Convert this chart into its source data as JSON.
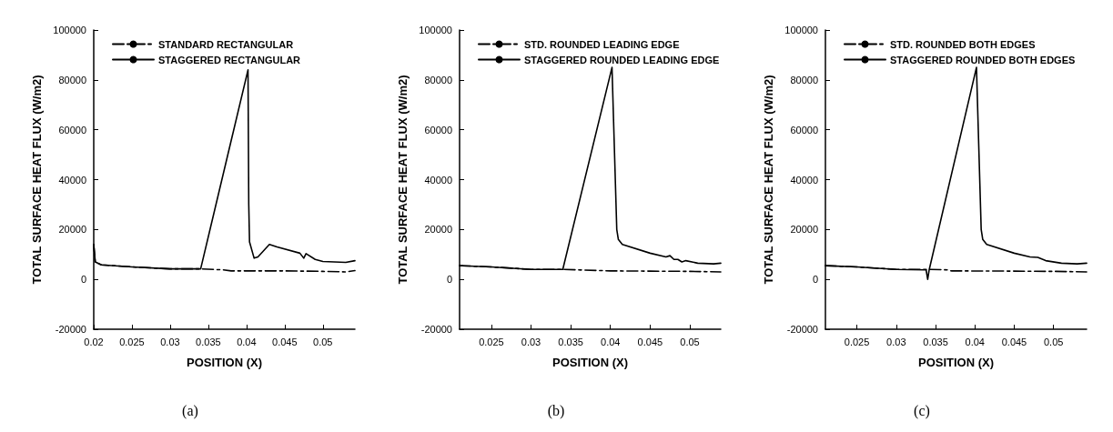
{
  "chart_data": [
    {
      "type": "line",
      "xlabel": "POSITION (X)",
      "ylabel": "TOTAL SURFACE HEAT FLUX (W/m2)",
      "annotations": [
        "(a)"
      ],
      "xlim": [
        0.02,
        0.0542
      ],
      "xticks": [
        0.02,
        0.025,
        0.03,
        0.035,
        0.04,
        0.045,
        0.05
      ],
      "ylim": [
        -20000,
        100000
      ],
      "yticks": [
        -20000,
        0,
        20000,
        40000,
        60000,
        80000,
        100000
      ],
      "grid": false,
      "legend": "top",
      "series": [
        {
          "name": "STANDARD RECTANGULAR",
          "color": "#000000",
          "line_style": "dashed",
          "x": [
            0.02,
            0.0202,
            0.021,
            0.025,
            0.03,
            0.034,
            0.037,
            0.038,
            0.045,
            0.05,
            0.053,
            0.0542
          ],
          "values": [
            14000,
            7000,
            5800,
            5000,
            4200,
            4200,
            3800,
            3400,
            3400,
            3200,
            3000,
            3500
          ]
        },
        {
          "name": "STAGGERED RECTANGULAR",
          "color": "#000000",
          "line_style": "solid",
          "x": [
            0.02,
            0.0202,
            0.021,
            0.025,
            0.03,
            0.034,
            0.0402,
            0.0403,
            0.0404,
            0.041,
            0.0415,
            0.043,
            0.044,
            0.047,
            0.0475,
            0.0478,
            0.049,
            0.05,
            0.053,
            0.0542
          ],
          "values": [
            14000,
            7000,
            5800,
            5000,
            4200,
            4200,
            84000,
            30000,
            15000,
            8500,
            9000,
            14000,
            13000,
            10500,
            8500,
            10300,
            8000,
            7200,
            6800,
            7500
          ]
        }
      ]
    },
    {
      "type": "line",
      "xlabel": "POSITION (X)",
      "ylabel": "TOTAL SURFACE HEAT FLUX (W/m2)",
      "annotations": [
        "(b)"
      ],
      "xlim": [
        0.021,
        0.0539
      ],
      "xticks": [
        0.025,
        0.03,
        0.035,
        0.04,
        0.045,
        0.05
      ],
      "ylim": [
        -20000,
        100000
      ],
      "yticks": [
        -20000,
        0,
        20000,
        40000,
        60000,
        80000,
        100000
      ],
      "grid": false,
      "legend": "top",
      "series": [
        {
          "name": "STD. ROUNDED LEADING EDGE",
          "color": "#000000",
          "line_style": "dashed",
          "x": [
            0.021,
            0.025,
            0.03,
            0.034,
            0.04,
            0.045,
            0.05,
            0.0539
          ],
          "values": [
            5500,
            5000,
            4000,
            4000,
            3400,
            3300,
            3200,
            3000
          ]
        },
        {
          "name": "STAGGERED ROUNDED LEADING EDGE",
          "color": "#000000",
          "line_style": "solid",
          "x": [
            0.021,
            0.025,
            0.03,
            0.034,
            0.0402,
            0.0408,
            0.041,
            0.0415,
            0.045,
            0.047,
            0.0475,
            0.048,
            0.0485,
            0.049,
            0.0495,
            0.051,
            0.053,
            0.0539
          ],
          "values": [
            5500,
            5000,
            4000,
            4000,
            85000,
            20000,
            16000,
            14000,
            10500,
            9000,
            9500,
            8000,
            8000,
            7000,
            7500,
            6500,
            6200,
            6500
          ]
        }
      ]
    },
    {
      "type": "line",
      "xlabel": "POSITION (X)",
      "ylabel": "TOTAL SURFACE HEAT FLUX (W/m2)",
      "annotations": [
        "(c)"
      ],
      "xlim": [
        0.021,
        0.0542
      ],
      "xticks": [
        0.025,
        0.03,
        0.035,
        0.04,
        0.045,
        0.05
      ],
      "ylim": [
        -20000,
        100000
      ],
      "yticks": [
        -20000,
        0,
        20000,
        40000,
        60000,
        80000,
        100000
      ],
      "grid": false,
      "legend": "top",
      "series": [
        {
          "name": "STD. ROUNDED BOTH EDGES",
          "color": "#000000",
          "line_style": "dashed",
          "x": [
            0.021,
            0.025,
            0.03,
            0.034,
            0.0365,
            0.037,
            0.045,
            0.05,
            0.0542
          ],
          "values": [
            5500,
            5000,
            4000,
            4000,
            3800,
            3400,
            3300,
            3200,
            3000
          ]
        },
        {
          "name": "STAGGERED ROUNDED BOTH EDGES",
          "color": "#000000",
          "line_style": "solid",
          "x": [
            0.021,
            0.025,
            0.03,
            0.0338,
            0.034,
            0.0342,
            0.0402,
            0.0408,
            0.041,
            0.0415,
            0.045,
            0.047,
            0.048,
            0.049,
            0.051,
            0.053,
            0.0542
          ],
          "values": [
            5500,
            5000,
            4000,
            3800,
            0,
            4000,
            85000,
            20000,
            16000,
            14000,
            10500,
            9000,
            8800,
            7500,
            6500,
            6200,
            6500
          ]
        }
      ]
    }
  ]
}
